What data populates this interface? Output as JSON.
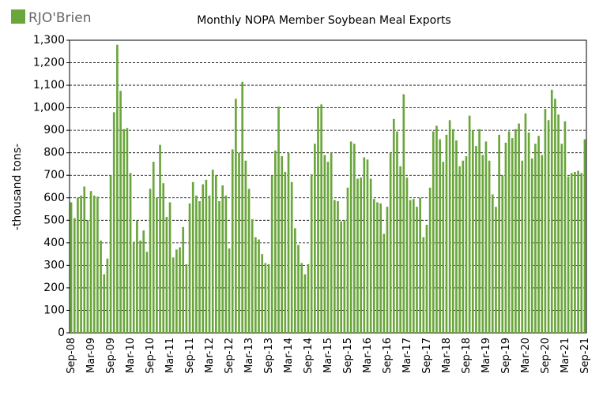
{
  "chart_data": {
    "type": "bar",
    "title": "Monthly NOPA Member Soybean Meal Exports",
    "logo": "RJO'Brien",
    "ylabel": "-thousand tons-",
    "categories": [
      "Sep-08",
      null,
      null,
      null,
      null,
      null,
      "Mar-09",
      null,
      null,
      null,
      null,
      null,
      "Sep-09",
      null,
      null,
      null,
      null,
      null,
      "Mar-10",
      null,
      null,
      null,
      null,
      null,
      "Sep-10",
      null,
      null,
      null,
      null,
      null,
      "Mar-11",
      null,
      null,
      null,
      null,
      null,
      "Sep-11",
      null,
      null,
      null,
      null,
      null,
      "Mar-12",
      null,
      null,
      null,
      null,
      null,
      "Sep-12",
      null,
      null,
      null,
      null,
      null,
      "Mar-13",
      null,
      null,
      null,
      null,
      null,
      "Sep-13",
      null,
      null,
      null,
      null,
      null,
      "Mar-14",
      null,
      null,
      null,
      null,
      null,
      "Sep-14",
      null,
      null,
      null,
      null,
      null,
      "Mar-15",
      null,
      null,
      null,
      null,
      null,
      "Sep-15",
      null,
      null,
      null,
      null,
      null,
      "Mar-16",
      null,
      null,
      null,
      null,
      null,
      "Sep-16",
      null,
      null,
      null,
      null,
      null,
      "Mar-17",
      null,
      null,
      null,
      null,
      null,
      "Sep-17",
      null,
      null,
      null,
      null,
      null,
      "Mar-18",
      null,
      null,
      null,
      null,
      null,
      "Sep-18",
      null,
      null,
      null,
      null,
      null,
      "Mar-19",
      null,
      null,
      null,
      null,
      null,
      "Sep-19",
      null,
      null,
      null,
      null,
      null,
      "Mar-20",
      null,
      null,
      null,
      null,
      null,
      "Sep-20",
      null,
      null,
      null,
      null,
      null,
      "Mar-21",
      null,
      null,
      null,
      null,
      null,
      "Sep-21"
    ],
    "values": [
      580,
      510,
      600,
      610,
      650,
      500,
      630,
      610,
      605,
      410,
      260,
      330,
      700,
      980,
      1280,
      1075,
      905,
      910,
      710,
      405,
      500,
      410,
      455,
      360,
      640,
      760,
      600,
      835,
      665,
      515,
      580,
      335,
      370,
      380,
      470,
      305,
      575,
      670,
      610,
      585,
      660,
      680,
      610,
      725,
      700,
      585,
      655,
      610,
      375,
      815,
      1040,
      800,
      1115,
      765,
      640,
      505,
      425,
      415,
      350,
      310,
      305,
      700,
      810,
      1005,
      785,
      715,
      800,
      670,
      465,
      390,
      310,
      260,
      305,
      705,
      840,
      1005,
      1015,
      790,
      760,
      800,
      590,
      585,
      495,
      500,
      645,
      850,
      840,
      685,
      690,
      780,
      770,
      685,
      595,
      580,
      575,
      440,
      560,
      800,
      950,
      895,
      740,
      1060,
      690,
      590,
      595,
      560,
      600,
      425,
      480,
      645,
      895,
      920,
      860,
      760,
      880,
      945,
      905,
      855,
      740,
      765,
      785,
      965,
      900,
      830,
      905,
      790,
      850,
      765,
      615,
      560,
      880,
      700,
      845,
      895,
      865,
      905,
      930,
      765,
      975,
      890,
      775,
      840,
      875,
      790,
      995,
      945,
      1080,
      1040,
      970,
      840,
      940,
      695,
      710,
      715,
      720,
      710,
      860
    ],
    "color": "#6aa63c",
    "ylim": [
      0,
      1300
    ],
    "yticks": [
      0,
      100,
      200,
      300,
      400,
      500,
      600,
      700,
      800,
      900,
      {
        "value": 1000,
        "label": "1,000"
      },
      {
        "value": 1100,
        "label": "1,100"
      },
      {
        "value": 1200,
        "label": "1,200"
      },
      {
        "value": 1300,
        "label": "1,300"
      }
    ],
    "grid": true
  }
}
